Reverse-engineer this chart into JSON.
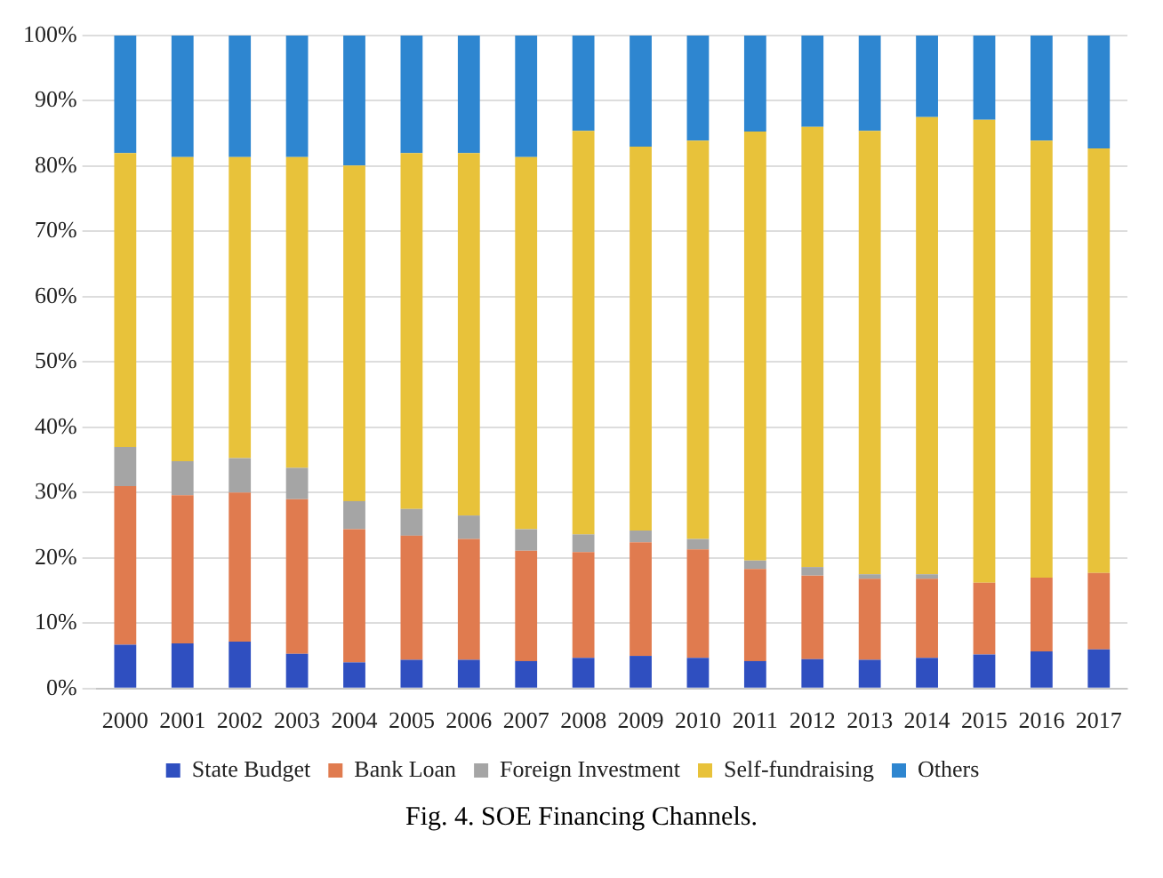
{
  "chart_data": {
    "type": "bar",
    "stacked": true,
    "categories": [
      "2000",
      "2001",
      "2002",
      "2003",
      "2004",
      "2005",
      "2006",
      "2007",
      "2008",
      "2009",
      "2010",
      "2011",
      "2012",
      "2013",
      "2014",
      "2015",
      "2016",
      "2017"
    ],
    "series": [
      {
        "name": "State Budget",
        "color": "#2f4fc0",
        "values": [
          6.7,
          6.9,
          7.2,
          5.3,
          4,
          4.4,
          4.4,
          4.2,
          4.7,
          5,
          4.7,
          4.2,
          4.5,
          4.4,
          4.7,
          5.2,
          5.7,
          6
        ]
      },
      {
        "name": "Bank Loan",
        "color": "#e07b4f",
        "values": [
          24.3,
          22.7,
          22.8,
          23.7,
          20.4,
          19,
          18.5,
          16.9,
          16.2,
          17.4,
          16.6,
          14.1,
          12.8,
          12.4,
          12.1,
          11,
          11.3,
          11.7
        ]
      },
      {
        "name": "Foreign Investment",
        "color": "#a5a5a5",
        "values": [
          6,
          5.2,
          5.3,
          4.8,
          4.3,
          4.1,
          3.6,
          3.3,
          2.7,
          1.8,
          1.6,
          1.3,
          1.3,
          0.7,
          0.7,
          0,
          0,
          0
        ]
      },
      {
        "name": "Self-fundraising",
        "color": "#e8c23a",
        "values": [
          45,
          46.6,
          46.1,
          47.6,
          51.4,
          54.5,
          55.5,
          57,
          61.8,
          58.8,
          61,
          65.7,
          67.4,
          67.9,
          70,
          70.9,
          66.9,
          65
        ]
      },
      {
        "name": "Others",
        "color": "#2e86d0",
        "values": [
          18,
          18.6,
          18.6,
          18.6,
          19.9,
          18,
          18,
          18.6,
          14.6,
          17,
          16.1,
          14.7,
          14,
          14.6,
          12.5,
          12.9,
          16.1,
          17.3
        ]
      }
    ],
    "ylim": [
      0,
      100
    ],
    "yticks": [
      {
        "value": 0,
        "label": "0%"
      },
      {
        "value": 10,
        "label": "10%"
      },
      {
        "value": 20,
        "label": "20%"
      },
      {
        "value": 30,
        "label": "30%"
      },
      {
        "value": 40,
        "label": "40%"
      },
      {
        "value": 50,
        "label": "50%"
      },
      {
        "value": 60,
        "label": "60%"
      },
      {
        "value": 70,
        "label": "70%"
      },
      {
        "value": 80,
        "label": "80%"
      },
      {
        "value": 90,
        "label": "90%"
      },
      {
        "value": 100,
        "label": "100%"
      }
    ],
    "grid": "y",
    "legend": "bottom",
    "annotations": [
      "Fig. 4. SOE Financing Channels."
    ]
  }
}
